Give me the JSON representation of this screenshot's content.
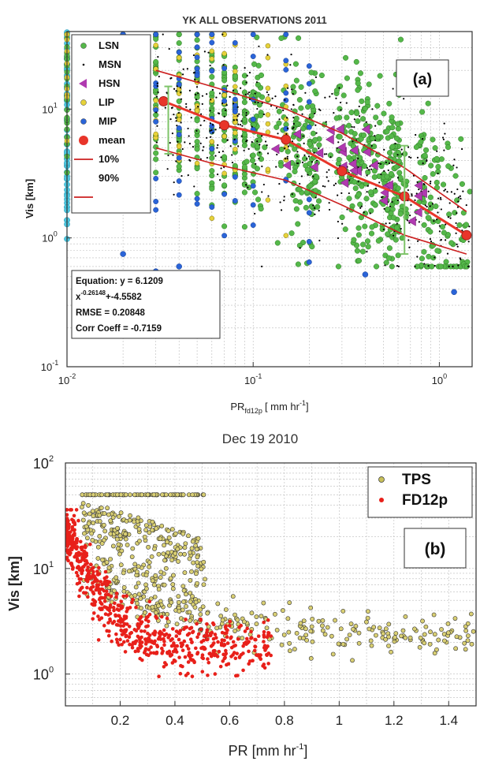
{
  "chart_data": [
    {
      "type": "scatter",
      "title": "YK ALL OBSERVATIONS 2011",
      "panel_label": "(a)",
      "xlabel": {
        "main": "PR",
        "sub": "fd12p",
        "units": "[ mm hr",
        "sup": "-1",
        "close": "]"
      },
      "ylabel": "Vis [km]",
      "xscale": "log",
      "yscale": "log",
      "xlim": [
        0.01,
        1.5
      ],
      "ylim": [
        0.1,
        40
      ],
      "x_ticks": [
        {
          "v": 0.01,
          "base": "10",
          "exp": "-2"
        },
        {
          "v": 0.1,
          "base": "10",
          "exp": "-1"
        },
        {
          "v": 1,
          "base": "10",
          "exp": "0"
        }
      ],
      "y_ticks": [
        {
          "v": 0.1,
          "base": "10",
          "exp": "-1"
        },
        {
          "v": 1,
          "base": "10",
          "exp": "0"
        },
        {
          "v": 10,
          "base": "10",
          "exp": "1"
        }
      ],
      "grid": true,
      "legend_position": "top-left",
      "legend": [
        {
          "label": "LSN",
          "marker": "circle",
          "color": "#55b84a"
        },
        {
          "label": "MSN",
          "marker": "dot",
          "color": "#000000"
        },
        {
          "label": "HSN",
          "marker": "triangle-left",
          "color": "#b03ab0"
        },
        {
          "label": "LIP",
          "marker": "circle",
          "color": "#e6d23a"
        },
        {
          "label": "MIP",
          "marker": "circle",
          "color": "#2a64d8"
        },
        {
          "label": "mean",
          "marker": "big-circle",
          "color": "#e8352a"
        },
        {
          "label": "10%",
          "marker": "line",
          "color": "#cc2020"
        },
        {
          "label": "90%",
          "marker": "none",
          "color": "#cc2020"
        },
        {
          "label": "",
          "marker": "line",
          "color": "#cc2020"
        }
      ],
      "mean_line": {
        "x": [
          0.033,
          0.07,
          0.15,
          0.3,
          0.65,
          1.4
        ],
        "y": [
          11.5,
          7.5,
          5.8,
          3.3,
          2.1,
          1.05
        ]
      },
      "p10_line": {
        "x": [
          0.03,
          0.06,
          0.15,
          0.3,
          0.65,
          1.4
        ],
        "y": [
          20,
          15,
          10,
          6.5,
          3.5,
          1.6
        ]
      },
      "p90_line": {
        "x": [
          0.03,
          0.06,
          0.15,
          0.3,
          0.65,
          1.4
        ],
        "y": [
          5,
          3.8,
          2.8,
          1.8,
          1.05,
          0.75
        ]
      },
      "error_bars": [
        {
          "x": 0.035,
          "low": 4.5,
          "high": 15
        },
        {
          "x": 0.65,
          "low": 0.75,
          "high": 5.2
        }
      ],
      "fit_box": [
        "Equation: y = 6.1209",
        "x",
        "-0.26148",
        "+-4.5582",
        "RMSE = 0.20848",
        "Corr Coeff = -0.7159"
      ],
      "series": [
        {
          "name": "LSN",
          "color": "#55b84a",
          "x_range": [
            0.01,
            1.5
          ],
          "y_center": "fit",
          "spread": 0.45
        },
        {
          "name": "MSN",
          "color": "#000000",
          "x_range": [
            0.03,
            1.5
          ],
          "y_center": "fit",
          "spread": 0.35
        },
        {
          "name": "HSN",
          "color": "#b03ab0",
          "x_range": [
            0.1,
            1.0
          ],
          "y_center": "fit",
          "spread": 0.15
        },
        {
          "name": "LIP",
          "color": "#e6d23a",
          "x_range": [
            0.01,
            0.5
          ],
          "y_center": "fit",
          "spread": 0.5
        },
        {
          "name": "MIP",
          "color": "#2a64d8",
          "x_range": [
            0.01,
            1.2
          ],
          "y_center": "fit",
          "spread": 0.6
        }
      ]
    },
    {
      "type": "scatter",
      "title": "Dec 19 2010",
      "panel_label": "(b)",
      "xlabel": {
        "main": "PR [mm hr",
        "sup": "-1",
        "close": "]"
      },
      "ylabel": "Vis [km]",
      "xscale": "linear",
      "yscale": "log",
      "xlim": [
        0,
        1.5
      ],
      "ylim": [
        0.5,
        100
      ],
      "x_ticks": [
        0.2,
        0.4,
        0.6,
        0.8,
        1,
        1.2,
        1.4
      ],
      "y_ticks": [
        {
          "v": 1,
          "base": "10",
          "exp": "0"
        },
        {
          "v": 10,
          "base": "10",
          "exp": "1"
        },
        {
          "v": 100,
          "base": "10",
          "exp": "2"
        }
      ],
      "grid": true,
      "legend_position": "top-right",
      "legend": [
        {
          "label": "TPS",
          "marker": "circle",
          "color": "#c8c05a"
        },
        {
          "label": "FD12p",
          "marker": "dot",
          "color": "#e8201a"
        }
      ],
      "series": [
        {
          "name": "TPS",
          "color": "#c8c05a",
          "x_range": [
            0.05,
            1.5
          ],
          "y_max": 50
        },
        {
          "name": "FD12p",
          "color": "#e8201a",
          "x_range": [
            0.0,
            0.8
          ],
          "y_max": 35
        }
      ]
    }
  ]
}
